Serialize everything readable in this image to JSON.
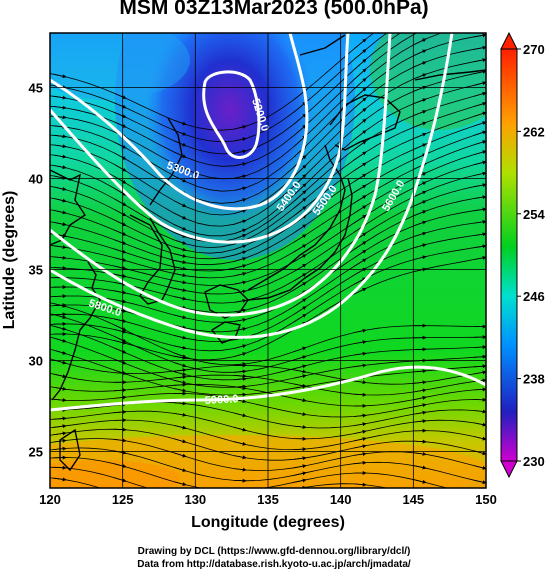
{
  "title": "MSM 03Z13Mar2023 (500.0hPa)",
  "map": {
    "xlabel": "Longitude (degrees)",
    "ylabel": "Latitude  (degrees)",
    "xlim": [
      120,
      150
    ],
    "ylim": [
      23,
      48
    ],
    "xticks": [
      "120",
      "125",
      "130",
      "135",
      "140",
      "145",
      "150"
    ],
    "yticks": [
      "25",
      "30",
      "35",
      "40",
      "45"
    ],
    "grid": true,
    "contour_labels": [
      "5200.0",
      "5300.0",
      "5400.0",
      "5500.0",
      "5600.0",
      "5800.0",
      "5900.0"
    ],
    "colorbar": {
      "ticks": [
        "230",
        "238",
        "246",
        "254",
        "262",
        "270"
      ],
      "min": 230,
      "max": 270,
      "colors": [
        "#d000d0",
        "#2020c0",
        "#0090ff",
        "#00e0d0",
        "#00d020",
        "#b0e000",
        "#ffa000",
        "#ff2000"
      ]
    }
  },
  "credits": {
    "line1": "Drawing by DCL (https://www.gfd-dennou.org/library/dcl/)",
    "line2": "Data from http://database.rish.kyoto-u.ac.jp/arch/jmadata/"
  }
}
